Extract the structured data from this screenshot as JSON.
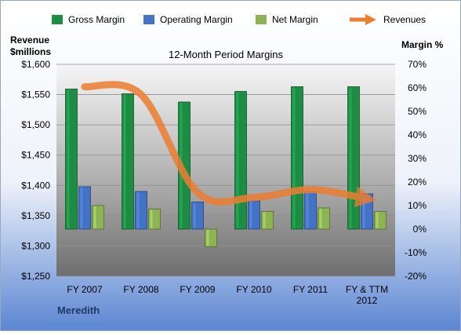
{
  "company": "Meredith",
  "chart_data": {
    "type": "bar",
    "title": "12-Month Period Margins",
    "left_axis_title": [
      "Revenue",
      "$millions"
    ],
    "right_axis_title": "Margin %",
    "categories": [
      [
        "FY 2007"
      ],
      [
        "FY 2008"
      ],
      [
        "FY 2009"
      ],
      [
        "FY 2010"
      ],
      [
        "FY 2011"
      ],
      [
        "FY & TTM",
        "2012"
      ]
    ],
    "left_axis": {
      "min": 1250,
      "max": 1600,
      "step": 50,
      "tick_labels": [
        "$1,250",
        "$1,300",
        "$1,350",
        "$1,400",
        "$1,450",
        "$1,500",
        "$1,550",
        "$1,600"
      ]
    },
    "right_axis": {
      "min": -20,
      "max": 70,
      "step": 10,
      "tick_labels": [
        "-20%",
        "-10%",
        "0%",
        "10%",
        "20%",
        "30%",
        "40%",
        "50%",
        "60%",
        "70%"
      ]
    },
    "series": [
      {
        "name": "Gross Margin",
        "axis": "right",
        "kind": "bar",
        "color": "#1E8C45",
        "values": [
          59.5,
          57.5,
          54,
          58.5,
          60.5,
          60.5
        ]
      },
      {
        "name": "Operating Margin",
        "axis": "right",
        "kind": "bar",
        "color": "#4472C4",
        "values": [
          18,
          16,
          11.5,
          12,
          16,
          15
        ]
      },
      {
        "name": "Net Margin",
        "axis": "right",
        "kind": "bar",
        "color": "#8DB356",
        "values": [
          10,
          8.5,
          -7.5,
          7.5,
          9,
          7.5
        ]
      },
      {
        "name": "Revenues",
        "axis": "left",
        "kind": "line",
        "color": "#ED7D31",
        "values": [
          1563,
          1550,
          1388,
          1380,
          1393,
          1378
        ]
      }
    ],
    "grid": true,
    "legend": "top"
  }
}
